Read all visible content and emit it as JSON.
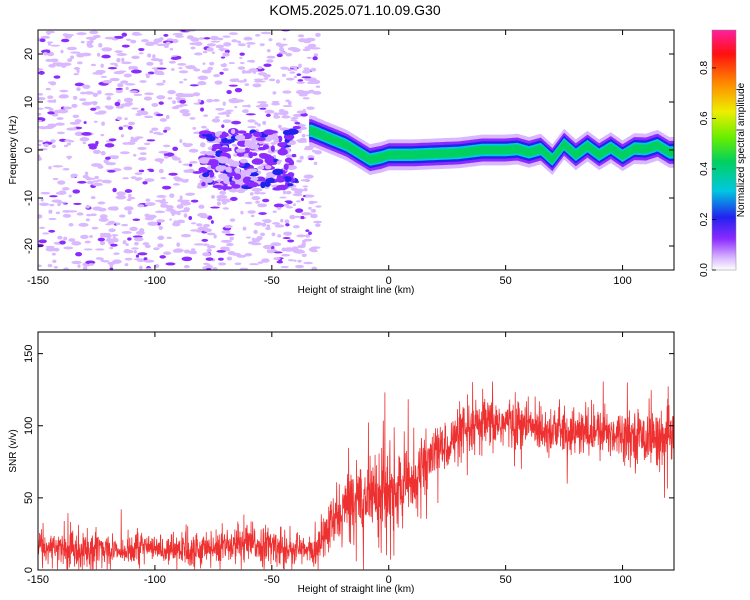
{
  "title": "KOM5.2025.071.10.09.G30",
  "chart_data": [
    {
      "type": "heatmap",
      "title": "KOM5.2025.071.10.09.G30",
      "xlabel": "Height of straight line (km)",
      "ylabel": "Frequency (Hz)",
      "xlim": [
        -150,
        122
      ],
      "ylim": [
        -25,
        25
      ],
      "xticks": [
        -150,
        -100,
        -50,
        0,
        50,
        100
      ],
      "yticks": [
        -20,
        -10,
        0,
        10,
        20
      ],
      "colorbar": {
        "label": "Normalized spectral amplitude",
        "range": [
          0,
          0.95
        ],
        "ticks": [
          0.0,
          0.2,
          0.4,
          0.6,
          0.8
        ]
      },
      "ridge": {
        "description_points_x": [
          -33,
          -28,
          -23,
          -18,
          -13,
          -8,
          -3,
          0,
          10,
          20,
          30,
          40,
          50,
          55,
          60,
          65,
          70,
          75,
          80,
          85,
          90,
          95,
          100,
          105,
          110,
          115,
          120
        ],
        "description_points_freq": [
          4,
          3,
          2,
          1,
          -0.5,
          -2,
          -1.5,
          -1,
          -1,
          -0.8,
          -0.6,
          0,
          0,
          0.2,
          -0.5,
          0.2,
          -2,
          1.2,
          -1,
          0.8,
          -1,
          0.5,
          -1.2,
          0.3,
          0.2,
          1,
          -0.5
        ],
        "peak_amplitude": 0.95
      },
      "noise_region_x": [
        -150,
        -30
      ],
      "cluster": {
        "x_range": [
          -80,
          -40
        ],
        "freq_range": [
          -8,
          4
        ],
        "amplitude": 0.3
      }
    },
    {
      "type": "line",
      "xlabel": "Height of straight line (km)",
      "ylabel": "SNR (v/v)",
      "xlim": [
        -150,
        122
      ],
      "ylim": [
        0,
        165
      ],
      "xticks": [
        -150,
        -100,
        -50,
        0,
        50,
        100
      ],
      "yticks": [
        0,
        50,
        100,
        150
      ],
      "color": "#ee3030",
      "trend": {
        "x": [
          -150,
          -120,
          -90,
          -60,
          -40,
          -32,
          -25,
          -15,
          -5,
          0,
          10,
          20,
          30,
          40,
          50,
          60,
          70,
          80,
          90,
          100,
          110,
          122
        ],
        "mean": [
          15,
          15,
          14,
          18,
          15,
          12,
          30,
          50,
          55,
          50,
          62,
          82,
          92,
          100,
          102,
          100,
          97,
          95,
          95,
          95,
          92,
          90
        ],
        "spread": [
          9,
          9,
          8,
          10,
          9,
          7,
          14,
          18,
          22,
          25,
          15,
          12,
          13,
          14,
          13,
          12,
          12,
          12,
          12,
          12,
          13,
          14
        ]
      },
      "max": 160
    }
  ]
}
